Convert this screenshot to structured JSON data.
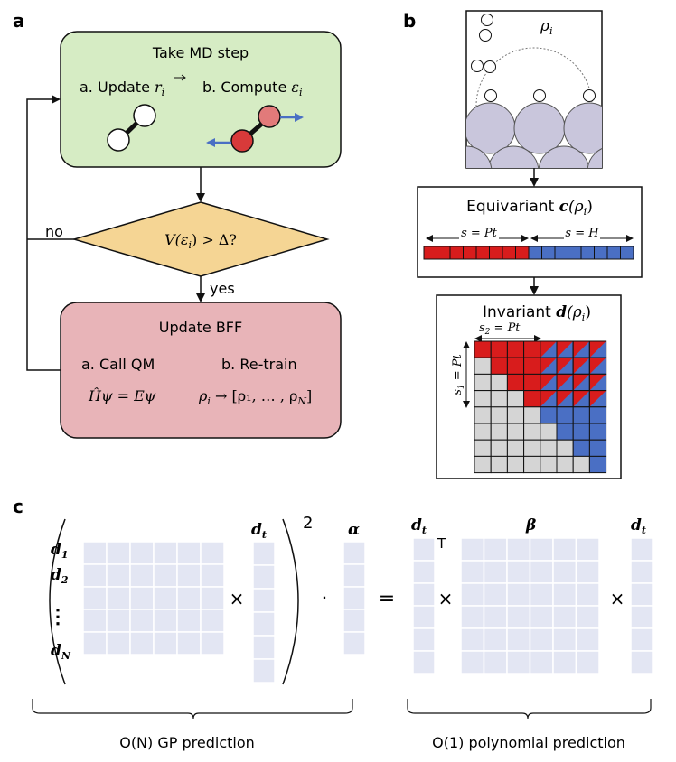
{
  "panels": {
    "a": {
      "label": "a",
      "md_box": {
        "title": "Take MD step",
        "step_a_prefix": "a. Update ",
        "step_a_var": "r",
        "step_a_sub": "i",
        "step_b_prefix": "b. Compute ",
        "step_b_var": "ε",
        "step_b_sub": "i"
      },
      "decision": {
        "expr_left": "V(ε",
        "expr_sub": "i",
        "expr_right": ") > Δ?",
        "no_label": "no",
        "yes_label": "yes"
      },
      "bff_box": {
        "title": "Update BFF",
        "step_a": "a. Call QM",
        "step_b": "b. Re-train",
        "equation": "Ĥψ = Eψ",
        "rho_left": "ρ",
        "rho_sub": "i",
        "rho_right": " → [ρ₁, … , ρ",
        "rho_last_sub": "N",
        "rho_close": "]"
      }
    },
    "b": {
      "label": "b",
      "rho_label": "ρ",
      "rho_sub": "i",
      "equivariant_box": {
        "title_text": "Equivariant ",
        "title_var": "c",
        "title_arg": "(ρ",
        "title_sub": "i",
        "title_close": ")",
        "species_pt": "s = Pt",
        "species_h": "s = H"
      },
      "invariant_box": {
        "title_text": "Invariant ",
        "title_var": "d",
        "title_arg": "(ρ",
        "title_sub": "i",
        "title_close": ")",
        "s2_label": "s",
        "s2_sub": "2",
        "s2_value": " = Pt",
        "s1_label": "s",
        "s1_sub": "1",
        "s1_value": " = Pt"
      }
    },
    "c": {
      "label": "c",
      "rows": [
        {
          "var": "d",
          "sub": "1"
        },
        {
          "var": "d",
          "sub": "2"
        },
        {
          "var": "⋮",
          "sub": ""
        },
        {
          "var": "d",
          "sub": "N"
        }
      ],
      "dt_var": "d",
      "dt_sub": "t",
      "power": "2",
      "alpha": "α",
      "beta": "β",
      "transpose": "T",
      "times": "×",
      "dot": "·",
      "equals": "=",
      "left_caption": "O(N) GP prediction",
      "right_caption": "O(1) polynomial prediction"
    }
  },
  "colors": {
    "md_fill": "#d6ecc4",
    "decision_fill": "#f5d594",
    "bff_fill": "#e8b4b8",
    "pt_red": "#d81c1c",
    "h_blue": "#4a6fc4",
    "grey_cell": "#d5d5d5",
    "matrix_fill": "#e3e6f3",
    "surface_fill": "#c9c6dc"
  }
}
